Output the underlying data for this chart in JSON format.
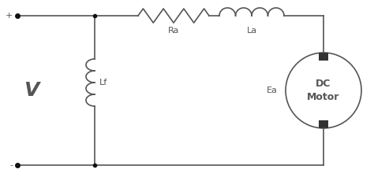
{
  "bg_color": "#ffffff",
  "line_color": "#555555",
  "lw": 1.2,
  "dot_color": "#111111",
  "terminal_dot_size": 4,
  "V_label": "V",
  "Ra_label": "Ra",
  "La_label": "La",
  "Lf_label": "Lf",
  "Ea_label": "Ea",
  "motor_label": "DC\nMotor",
  "plus_label": "+",
  "minus_label": "-",
  "fig_width": 4.74,
  "fig_height": 2.34,
  "dpi": 100
}
